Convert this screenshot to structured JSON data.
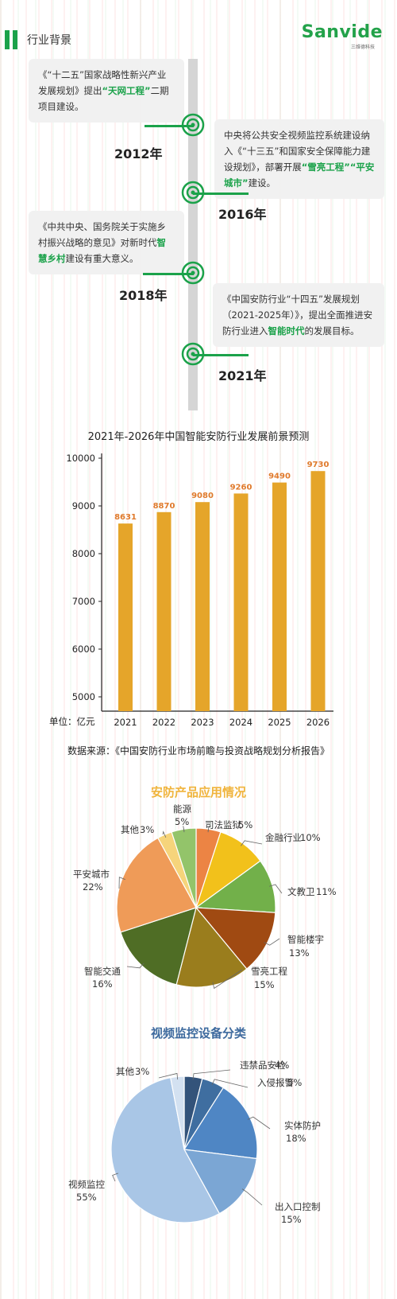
{
  "header": {
    "section_title": "行业背景",
    "brand": "Sanvide",
    "brand_sub": "三维德科技"
  },
  "timeline": [
    {
      "year": "2012年",
      "text_parts": [
        {
          "t": "《“十二五”国家战略性新兴产业发展规划》提出",
          "h": false
        },
        {
          "t": "“天网工程”",
          "h": true
        },
        {
          "t": "二期项目建设。",
          "h": false
        }
      ]
    },
    {
      "year": "2016年",
      "text_parts": [
        {
          "t": "中央将公共安全视频监控系统建设纳入《“十三五”和国家安全保障能力建设规划》，部署开展",
          "h": false
        },
        {
          "t": "“雪亮工程”“平安城市”",
          "h": true
        },
        {
          "t": "建设。",
          "h": false
        }
      ]
    },
    {
      "year": "2018年",
      "text_parts": [
        {
          "t": "《中共中央、国务院关于实施乡村振兴战略的意见》对新时代",
          "h": false
        },
        {
          "t": "智慧乡村",
          "h": true
        },
        {
          "t": "建设有重大意义。",
          "h": false
        }
      ]
    },
    {
      "year": "2021年",
      "text_parts": [
        {
          "t": "《中国安防行业“十四五”发展规划（2021-2025年）》，提出全面推进安防行业进入",
          "h": false
        },
        {
          "t": "智能时代",
          "h": true
        },
        {
          "t": "的发展目标。",
          "h": false
        }
      ]
    }
  ],
  "bar_chart_meta": {
    "unit_label": "单位：亿元",
    "source": "数据来源：《中国安防行业市场前瞻与投资战略规划分析报告》"
  },
  "colors": {
    "green": "#1ba24a",
    "bar": "#e5a52a",
    "bar_label": "#e07a2c",
    "pie1_title": "#f0b43c",
    "pie2_title": "#3d6a9e"
  },
  "chart_data": [
    {
      "type": "bar",
      "title": "2021年-2026年中国智能安防行业发展前景预测",
      "categories": [
        "2021",
        "2022",
        "2023",
        "2024",
        "2025",
        "2026"
      ],
      "values": [
        8631,
        8870,
        9080,
        9260,
        9490,
        9730
      ],
      "ylim": [
        4700,
        10000
      ],
      "yticks": [
        5000,
        6000,
        7000,
        8000,
        9000,
        10000
      ],
      "xlabel": "",
      "ylabel": "",
      "grid": false
    },
    {
      "type": "pie",
      "title": "安防产品应用情况",
      "slices": [
        {
          "label": "司法监狱",
          "value": 5,
          "pct": "5%",
          "color": "#ec8444"
        },
        {
          "label": "金融行业",
          "value": 10,
          "pct": "10%",
          "color": "#f2c11b"
        },
        {
          "label": "文教卫",
          "value": 11,
          "pct": "11%",
          "color": "#72b04a"
        },
        {
          "label": "智能楼宇",
          "value": 13,
          "pct": "13%",
          "color": "#a04a12"
        },
        {
          "label": "雪亮工程",
          "value": 15,
          "pct": "15%",
          "color": "#9a7d1d"
        },
        {
          "label": "智能交通",
          "value": 16,
          "pct": "16%",
          "color": "#4f6d25"
        },
        {
          "label": "平安城市",
          "value": 22,
          "pct": "22%",
          "color": "#ef9b58"
        },
        {
          "label": "其他",
          "value": 3,
          "pct": "3%",
          "color": "#f6d47b"
        },
        {
          "label": "能源",
          "value": 5,
          "pct": "5%",
          "color": "#93c46a"
        }
      ]
    },
    {
      "type": "pie",
      "title": "视频监控设备分类",
      "slices": [
        {
          "label": "违禁品安检",
          "value": 4,
          "pct": "4%",
          "color": "#33537a"
        },
        {
          "label": "入侵报警",
          "value": 5,
          "pct": "5%",
          "color": "#3f6ea0"
        },
        {
          "label": "实体防护",
          "value": 18,
          "pct": "18%",
          "color": "#4f86c4"
        },
        {
          "label": "出入口控制",
          "value": 15,
          "pct": "15%",
          "color": "#7ba6d4"
        },
        {
          "label": "视频监控",
          "value": 55,
          "pct": "55%",
          "color": "#a9c6e6"
        },
        {
          "label": "其他",
          "value": 3,
          "pct": "3%",
          "color": "#d3e1f1"
        }
      ]
    }
  ]
}
